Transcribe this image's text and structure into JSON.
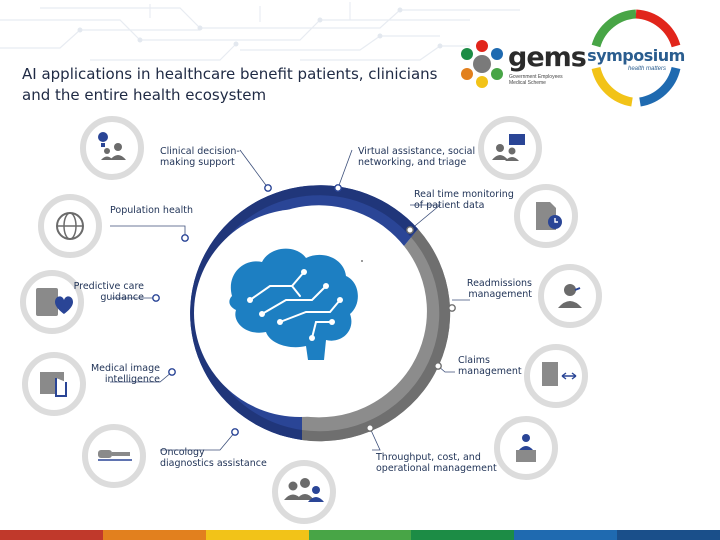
{
  "slide": {
    "title": "AI applications in healthcare benefit patients, clinicians and the entire health ecosystem"
  },
  "logos": {
    "gems": {
      "word": "gems",
      "tagline": "Government Employees Medical Scheme"
    },
    "symposium": {
      "word": "symposium",
      "tagline": "health matters"
    }
  },
  "applications": [
    {
      "label": "Clinical decision-\nmaking support",
      "icon": "doctor-idea-icon"
    },
    {
      "label": "Virtual assistance, social\nnetworking, and triage",
      "icon": "chat-people-icon"
    },
    {
      "label": "Population health",
      "icon": "globe-icon"
    },
    {
      "label": "Real time monitoring\nof patient data",
      "icon": "document-clock-icon"
    },
    {
      "label": "Predictive care\nguidance",
      "icon": "tablet-heart-icon"
    },
    {
      "label": "Readmissions\nmanagement",
      "icon": "person-headset-icon"
    },
    {
      "label": "Medical image\nintelligence",
      "icon": "hand-scan-icon"
    },
    {
      "label": "Claims\nmanagement",
      "icon": "document-exchange-icon"
    },
    {
      "label": "Oncology\ndiagnostics assistance",
      "icon": "microscope-icon"
    },
    {
      "label": "Throughput, cost, and\noperational management",
      "icon": "podium-person-icon"
    },
    {
      "label": "",
      "icon": "team-icon"
    }
  ],
  "colors": {
    "ring_blue": "#2a4596",
    "ring_grey": "#8c8c8c",
    "brain_blue": "#1d7fc2",
    "label_text": "#1f3256",
    "icon_grey": "#6b6b6b"
  },
  "footer_colors": [
    "#c0392b",
    "#e2801e",
    "#f2c318",
    "#48a546",
    "#1c8c45",
    "#1f6ab0",
    "#1a4f8a"
  ]
}
